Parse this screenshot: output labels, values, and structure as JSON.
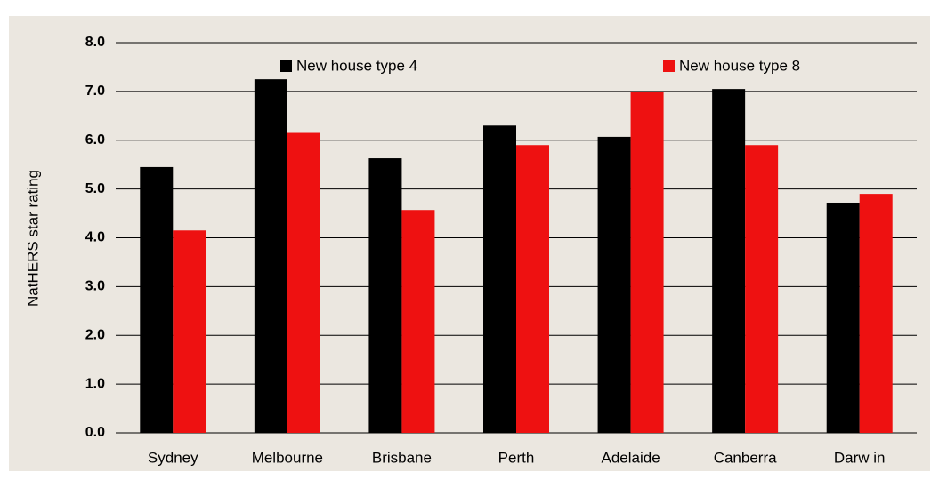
{
  "chart_data": {
    "type": "bar",
    "y_label": "NatHERS star rating",
    "categories": [
      "Sydney",
      "Melbourne",
      "Brisbane",
      "Perth",
      "Adelaide",
      "Canberra",
      "Darw in"
    ],
    "series": [
      {
        "name": "New  house type 4",
        "color": "#000000",
        "values": [
          5.45,
          7.25,
          5.63,
          6.3,
          6.07,
          7.05,
          4.72
        ]
      },
      {
        "name": "New  house type 8",
        "color": "#ee1111",
        "values": [
          4.15,
          6.15,
          4.57,
          5.9,
          6.98,
          5.9,
          4.9
        ]
      }
    ],
    "ylim": [
      0,
      8
    ],
    "yticks": [
      {
        "value": 0,
        "label": "0.0"
      },
      {
        "value": 1,
        "label": "1.0"
      },
      {
        "value": 2,
        "label": "2.0"
      },
      {
        "value": 3,
        "label": "3.0"
      },
      {
        "value": 4,
        "label": "4.0"
      },
      {
        "value": 5,
        "label": "5.0"
      },
      {
        "value": 6,
        "label": "6.0"
      },
      {
        "value": 7,
        "label": "7.0"
      },
      {
        "value": 8,
        "label": "8.0"
      }
    ],
    "grid": true
  }
}
